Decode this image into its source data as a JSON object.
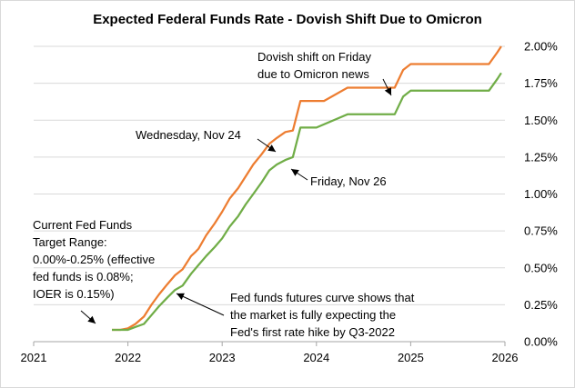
{
  "chart_data": {
    "type": "line",
    "title": "Expected Federal Funds Rate - Dovish Shift Due to Omicron",
    "xlabel": "",
    "ylabel": "",
    "xlim": [
      2021,
      2026
    ],
    "ylim": [
      0,
      2
    ],
    "x_ticks": [
      "2021",
      "2022",
      "2023",
      "2024",
      "2025",
      "2026"
    ],
    "y_ticks": [
      "0.00%",
      "0.25%",
      "0.50%",
      "0.75%",
      "1.00%",
      "1.25%",
      "1.50%",
      "1.75%",
      "2.00%"
    ],
    "grid": "horizontal",
    "series": [
      {
        "name": "Wednesday, Nov 24",
        "color": "#ED7D31",
        "x": [
          2021.83,
          2021.92,
          2022.0,
          2022.08,
          2022.17,
          2022.25,
          2022.33,
          2022.42,
          2022.5,
          2022.58,
          2022.67,
          2022.72,
          2022.75,
          2022.83,
          2022.92,
          2023.0,
          2023.08,
          2023.17,
          2023.25,
          2023.33,
          2023.42,
          2023.5,
          2023.58,
          2023.67,
          2023.75,
          2023.83,
          2023.92,
          2024.0,
          2024.08,
          2024.33,
          2024.42,
          2024.58,
          2024.83,
          2024.92,
          2025.0,
          2025.08,
          2025.83,
          2025.92,
          2025.96
        ],
        "y": [
          0.08,
          0.08,
          0.09,
          0.12,
          0.17,
          0.25,
          0.32,
          0.39,
          0.45,
          0.49,
          0.58,
          0.61,
          0.63,
          0.72,
          0.8,
          0.88,
          0.97,
          1.04,
          1.12,
          1.2,
          1.27,
          1.34,
          1.38,
          1.42,
          1.43,
          1.63,
          1.63,
          1.63,
          1.63,
          1.72,
          1.72,
          1.72,
          1.72,
          1.84,
          1.88,
          1.88,
          1.88,
          1.96,
          2.0
        ]
      },
      {
        "name": "Friday, Nov 26",
        "color": "#70AD47",
        "x": [
          2021.83,
          2021.92,
          2022.0,
          2022.08,
          2022.17,
          2022.25,
          2022.33,
          2022.42,
          2022.5,
          2022.58,
          2022.67,
          2022.75,
          2022.83,
          2022.92,
          2023.0,
          2023.08,
          2023.17,
          2023.25,
          2023.33,
          2023.42,
          2023.5,
          2023.58,
          2023.67,
          2023.75,
          2023.83,
          2023.92,
          2024.0,
          2024.33,
          2024.42,
          2024.58,
          2024.83,
          2024.92,
          2025.0,
          2025.08,
          2025.83,
          2025.92,
          2025.96
        ],
        "y": [
          0.08,
          0.08,
          0.08,
          0.1,
          0.12,
          0.18,
          0.24,
          0.3,
          0.35,
          0.38,
          0.46,
          0.52,
          0.58,
          0.64,
          0.7,
          0.78,
          0.85,
          0.93,
          1.0,
          1.08,
          1.16,
          1.2,
          1.23,
          1.25,
          1.45,
          1.45,
          1.45,
          1.54,
          1.54,
          1.54,
          1.54,
          1.66,
          1.7,
          1.7,
          1.7,
          1.78,
          1.82
        ]
      }
    ],
    "annotations": [
      {
        "id": "dovish",
        "lines": [
          "Dovish shift on Friday",
          "due to Omicron news"
        ]
      },
      {
        "id": "wed",
        "lines": [
          "Wednesday, Nov 24"
        ]
      },
      {
        "id": "fri",
        "lines": [
          "Friday, Nov 26"
        ]
      },
      {
        "id": "current",
        "lines": [
          "Current Fed Funds",
          "Target Range:",
          "0.00%-0.25% (effective",
          "fed funds is 0.08%;",
          "IOER is 0.15%)"
        ]
      },
      {
        "id": "futures",
        "lines": [
          "Fed funds futures curve shows that",
          "the market  is fully expecting the",
          "Fed's first rate hike by Q3-2022"
        ]
      }
    ]
  }
}
